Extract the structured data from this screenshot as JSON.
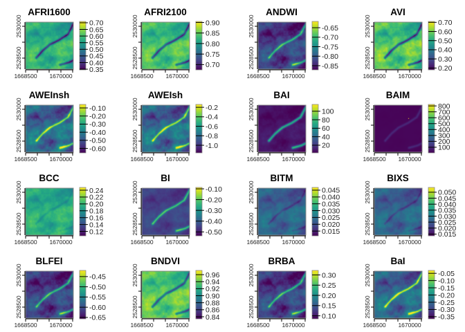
{
  "chart_data": [
    {
      "type": "heatmap",
      "title": "AFRI1600",
      "x_ticks": [
        "1668500",
        "1670000"
      ],
      "y_ticks": [
        "2530000",
        "2528500"
      ],
      "zlim": [
        0.345,
        0.71
      ],
      "colorbar_ticks": [
        "0.35",
        "0.40",
        "0.45",
        "0.50",
        "0.55",
        "0.60",
        "0.65",
        "0.70"
      ]
    },
    {
      "type": "heatmap",
      "title": "AFRI2100",
      "x_ticks": [
        "1668500",
        "1670000"
      ],
      "y_ticks": [
        "2530000",
        "2528500"
      ],
      "zlim": [
        0.675,
        0.905
      ],
      "colorbar_ticks": [
        "0.70",
        "0.75",
        "0.80",
        "0.85",
        "0.90"
      ]
    },
    {
      "type": "heatmap",
      "title": "ANDWI",
      "x_ticks": [
        "1668500",
        "1670000"
      ],
      "y_ticks": [
        "2530000",
        "2528500"
      ],
      "zlim": [
        -0.872,
        -0.617
      ],
      "colorbar_ticks": [
        "-0.85",
        "-0.80",
        "-0.75",
        "-0.70",
        "-0.65"
      ]
    },
    {
      "type": "heatmap",
      "title": "AVI",
      "x_ticks": [
        "1668500",
        "1670000"
      ],
      "y_ticks": [
        "2530000",
        "2528500"
      ],
      "zlim": [
        0.18,
        0.71
      ],
      "colorbar_ticks": [
        "0.20",
        "0.30",
        "0.40",
        "0.50",
        "0.60",
        "0.70"
      ]
    },
    {
      "type": "heatmap",
      "title": "AWEInsh",
      "x_ticks": [
        "1668500",
        "1670000"
      ],
      "y_ticks": [
        "2530000",
        "2528500"
      ],
      "zlim": [
        -0.655,
        -0.057
      ],
      "colorbar_ticks": [
        "-0.60",
        "-0.50",
        "-0.40",
        "-0.30",
        "-0.20",
        "-0.10"
      ]
    },
    {
      "type": "heatmap",
      "title": "AWEIsh",
      "x_ticks": [
        "1668500",
        "1670000"
      ],
      "y_ticks": [
        "2530000",
        "2528500"
      ],
      "zlim": [
        -1.16,
        -0.14
      ],
      "colorbar_ticks": [
        "-1.0",
        "-0.8",
        "-0.6",
        "-0.4",
        "-0.2"
      ]
    },
    {
      "type": "heatmap",
      "title": "BAI",
      "x_ticks": [
        "1668500",
        "1670000"
      ],
      "y_ticks": [
        "2530000",
        "2528500"
      ],
      "zlim": [
        2,
        116
      ],
      "colorbar_ticks": [
        "20",
        "40",
        "60",
        "80",
        "100"
      ]
    },
    {
      "type": "heatmap",
      "title": "BAIM",
      "x_ticks": [
        "1668500",
        "1670000"
      ],
      "y_ticks": [
        "2530000",
        "2528500"
      ],
      "zlim": [
        5,
        825
      ],
      "colorbar_ticks": [
        "100",
        "200",
        "300",
        "400",
        "500",
        "600",
        "700",
        "800"
      ]
    },
    {
      "type": "heatmap",
      "title": "BCC",
      "x_ticks": [
        "1668500",
        "1670000"
      ],
      "y_ticks": [
        "2530000",
        "2528500"
      ],
      "zlim": [
        0.107,
        0.248
      ],
      "colorbar_ticks": [
        "0.12",
        "0.14",
        "0.16",
        "0.18",
        "0.20",
        "0.22",
        "0.24"
      ]
    },
    {
      "type": "heatmap",
      "title": "BI",
      "x_ticks": [
        "1668500",
        "1670000"
      ],
      "y_ticks": [
        "2530000",
        "2528500"
      ],
      "zlim": [
        -0.537,
        -0.087
      ],
      "colorbar_ticks": [
        "-0.50",
        "-0.40",
        "-0.30",
        "-0.20",
        "-0.10"
      ]
    },
    {
      "type": "heatmap",
      "title": "BITM",
      "x_ticks": [
        "1668500",
        "1670000"
      ],
      "y_ticks": [
        "2530000",
        "2528500"
      ],
      "zlim": [
        0.0115,
        0.047
      ],
      "colorbar_ticks": [
        "0.015",
        "0.020",
        "0.025",
        "0.030",
        "0.035",
        "0.040",
        "0.045"
      ]
    },
    {
      "type": "heatmap",
      "title": "BIXS",
      "x_ticks": [
        "1668500",
        "1670000"
      ],
      "y_ticks": [
        "2530000",
        "2528500"
      ],
      "zlim": [
        0.0135,
        0.054
      ],
      "colorbar_ticks": [
        "0.015",
        "0.020",
        "0.025",
        "0.030",
        "0.035",
        "0.040",
        "0.045",
        "0.050"
      ]
    },
    {
      "type": "heatmap",
      "title": "BLFEI",
      "x_ticks": [
        "1668500",
        "1670000"
      ],
      "y_ticks": [
        "2530000",
        "2528500"
      ],
      "zlim": [
        -0.657,
        -0.42
      ],
      "colorbar_ticks": [
        "-0.65",
        "-0.60",
        "-0.55",
        "-0.50",
        "-0.45"
      ]
    },
    {
      "type": "heatmap",
      "title": "BNDVI",
      "x_ticks": [
        "1668500",
        "1670000"
      ],
      "y_ticks": [
        "2530000",
        "2528500"
      ],
      "zlim": [
        0.834,
        0.972
      ],
      "colorbar_ticks": [
        "0.84",
        "0.86",
        "0.88",
        "0.90",
        "0.92",
        "0.94",
        "0.96"
      ]
    },
    {
      "type": "heatmap",
      "title": "BRBA",
      "x_ticks": [
        "1668500",
        "1670000"
      ],
      "y_ticks": [
        "2530000",
        "2528500"
      ],
      "zlim": [
        0.085,
        0.322
      ],
      "colorbar_ticks": [
        "0.10",
        "0.15",
        "0.20",
        "0.25",
        "0.30"
      ]
    },
    {
      "type": "heatmap",
      "title": "BaI",
      "x_ticks": [
        "1668500",
        "1670000"
      ],
      "y_ticks": [
        "2530000",
        "2528500"
      ],
      "zlim": [
        -0.365,
        -0.03
      ],
      "colorbar_ticks": [
        "-0.35",
        "-0.30",
        "-0.25",
        "-0.20",
        "-0.15",
        "-0.10",
        "-0.05"
      ]
    }
  ],
  "colormap": "viridis"
}
